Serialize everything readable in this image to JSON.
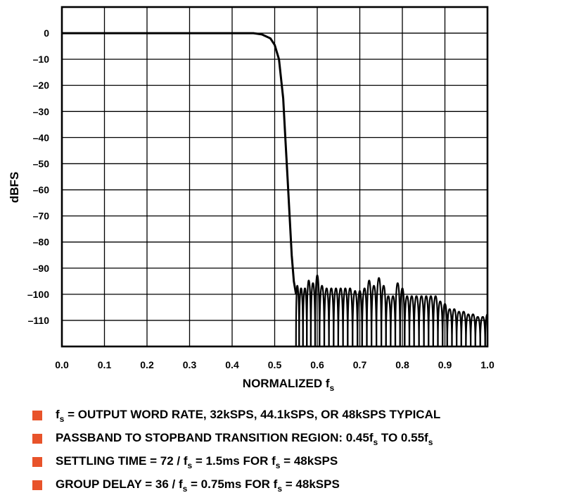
{
  "chart_data": {
    "type": "line",
    "title": "",
    "xlabel_main": "NORMALIZED f",
    "xlabel_sub": "s",
    "ylabel": "dBFS",
    "xlim": [
      0.0,
      1.0
    ],
    "ylim": [
      -120,
      10
    ],
    "xticks": [
      "0.0",
      "0.1",
      "0.2",
      "0.3",
      "0.4",
      "0.5",
      "0.6",
      "0.7",
      "0.8",
      "0.9",
      "1.0"
    ],
    "yticks": [
      {
        "value": 0,
        "label": "0"
      },
      {
        "value": -10,
        "label": "–10"
      },
      {
        "value": -20,
        "label": "–20"
      },
      {
        "value": -30,
        "label": "–30"
      },
      {
        "value": -40,
        "label": "–40"
      },
      {
        "value": -50,
        "label": "–50"
      },
      {
        "value": -60,
        "label": "–60"
      },
      {
        "value": -70,
        "label": "–70"
      },
      {
        "value": -80,
        "label": "–80"
      },
      {
        "value": -90,
        "label": "–90"
      },
      {
        "value": -100,
        "label": "–100"
      },
      {
        "value": -110,
        "label": "–110"
      }
    ],
    "grid": true,
    "series": [
      {
        "x": [
          0.0,
          0.4,
          0.45,
          0.47,
          0.49,
          0.5,
          0.51,
          0.52,
          0.525,
          0.53,
          0.535,
          0.54,
          0.545,
          0.55
        ],
        "y": [
          0,
          0,
          0,
          -0.5,
          -2,
          -4.5,
          -10,
          -25,
          -40,
          -55,
          -70,
          -85,
          -95,
          -100
        ]
      }
    ],
    "stopband_lobes": [
      {
        "x": 0.553,
        "peak": -97
      },
      {
        "x": 0.562,
        "peak": -98
      },
      {
        "x": 0.571,
        "peak": -98
      },
      {
        "x": 0.58,
        "peak": -95
      },
      {
        "x": 0.59,
        "peak": -96
      },
      {
        "x": 0.6,
        "peak": -93
      },
      {
        "x": 0.611,
        "peak": -97
      },
      {
        "x": 0.622,
        "peak": -98
      },
      {
        "x": 0.633,
        "peak": -98
      },
      {
        "x": 0.644,
        "peak": -98
      },
      {
        "x": 0.655,
        "peak": -98
      },
      {
        "x": 0.666,
        "peak": -98
      },
      {
        "x": 0.677,
        "peak": -98
      },
      {
        "x": 0.689,
        "peak": -99
      },
      {
        "x": 0.7,
        "peak": -99
      },
      {
        "x": 0.711,
        "peak": -98
      },
      {
        "x": 0.722,
        "peak": -95
      },
      {
        "x": 0.733,
        "peak": -97
      },
      {
        "x": 0.745,
        "peak": -94
      },
      {
        "x": 0.756,
        "peak": -97
      },
      {
        "x": 0.767,
        "peak": -101
      },
      {
        "x": 0.778,
        "peak": -101
      },
      {
        "x": 0.789,
        "peak": -96
      },
      {
        "x": 0.8,
        "peak": -98
      },
      {
        "x": 0.811,
        "peak": -101
      },
      {
        "x": 0.822,
        "peak": -101
      },
      {
        "x": 0.833,
        "peak": -101
      },
      {
        "x": 0.845,
        "peak": -101
      },
      {
        "x": 0.856,
        "peak": -101
      },
      {
        "x": 0.867,
        "peak": -101
      },
      {
        "x": 0.878,
        "peak": -101
      },
      {
        "x": 0.889,
        "peak": -103
      },
      {
        "x": 0.9,
        "peak": -104
      },
      {
        "x": 0.911,
        "peak": -106
      },
      {
        "x": 0.922,
        "peak": -106
      },
      {
        "x": 0.933,
        "peak": -107
      },
      {
        "x": 0.944,
        "peak": -107
      },
      {
        "x": 0.955,
        "peak": -108
      },
      {
        "x": 0.966,
        "peak": -108
      },
      {
        "x": 0.977,
        "peak": -109
      },
      {
        "x": 0.989,
        "peak": -109
      },
      {
        "x": 1.0,
        "peak": -108
      }
    ]
  },
  "notes": {
    "bullet_color": "#e8532a",
    "items": [
      {
        "parts": [
          {
            "t": "f"
          },
          {
            "t": "s",
            "sub": true
          },
          {
            "t": " = OUTPUT WORD RATE, 32kSPS, 44.1kSPS, OR 48kSPS TYPICAL"
          }
        ]
      },
      {
        "parts": [
          {
            "t": "PASSBAND TO STOPBAND TRANSITION REGION: 0.45f"
          },
          {
            "t": "s",
            "sub": true
          },
          {
            "t": " TO 0.55f"
          },
          {
            "t": "s",
            "sub": true
          }
        ]
      },
      {
        "parts": [
          {
            "t": "SETTLING TIME = 72 / f"
          },
          {
            "t": "s",
            "sub": true
          },
          {
            "t": " = 1.5ms   FOR f"
          },
          {
            "t": "s",
            "sub": true
          },
          {
            "t": " = 48kSPS"
          }
        ]
      },
      {
        "parts": [
          {
            "t": "GROUP DELAY  = 36 / f"
          },
          {
            "t": "s",
            "sub": true
          },
          {
            "t": " = 0.75ms FOR f"
          },
          {
            "t": "s",
            "sub": true
          },
          {
            "t": " = 48kSPS"
          }
        ]
      }
    ]
  }
}
